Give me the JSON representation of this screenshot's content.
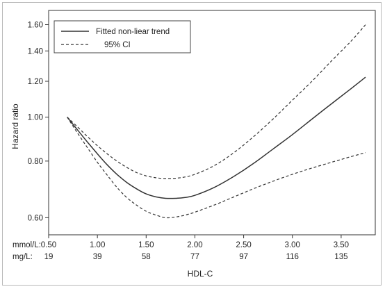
{
  "chart_data": {
    "type": "line",
    "title": "",
    "xlabel": "HDL-C",
    "ylabel": "Hazard ratio",
    "y_scale": "log",
    "ylim": [
      0.55,
      1.72
    ],
    "xlim": [
      0.5,
      3.85
    ],
    "grid": false,
    "legend_position": "top-left",
    "y_ticks": [
      "0.60",
      "0.80",
      "1.00",
      "1.20",
      "1.40",
      "1.60"
    ],
    "x_unit_row_labels": [
      "mmol/L:",
      "mg/L:"
    ],
    "x_ticks_mmol": [
      "0.50",
      "1.00",
      "1.50",
      "2.00",
      "2.50",
      "3.00",
      "3.50"
    ],
    "x_ticks_mg": [
      "19",
      "39",
      "58",
      "77",
      "97",
      "116",
      "135"
    ],
    "x_tick_values": [
      0.5,
      1.0,
      1.5,
      2.0,
      2.5,
      3.0,
      3.5
    ],
    "series": [
      {
        "name": "Fitted non-liear trend",
        "style": "solid",
        "x": [
          0.69,
          0.8,
          0.9,
          1.0,
          1.1,
          1.2,
          1.3,
          1.4,
          1.5,
          1.6,
          1.7,
          1.8,
          1.9,
          2.0,
          2.2,
          2.4,
          2.6,
          2.8,
          3.0,
          3.2,
          3.4,
          3.6,
          3.75
        ],
        "y": [
          1.0,
          0.935,
          0.88,
          0.83,
          0.785,
          0.748,
          0.718,
          0.695,
          0.677,
          0.667,
          0.662,
          0.662,
          0.665,
          0.672,
          0.7,
          0.74,
          0.79,
          0.85,
          0.915,
          0.99,
          1.07,
          1.155,
          1.225
        ]
      },
      {
        "name": "95% CI",
        "style": "dashed",
        "x": [
          0.69,
          0.8,
          0.9,
          1.0,
          1.1,
          1.2,
          1.3,
          1.4,
          1.5,
          1.6,
          1.7,
          1.8,
          1.9,
          2.0,
          2.2,
          2.4,
          2.6,
          2.8,
          3.0,
          3.2,
          3.4,
          3.6,
          3.75
        ],
        "y": [
          1.0,
          0.95,
          0.905,
          0.865,
          0.83,
          0.8,
          0.775,
          0.755,
          0.742,
          0.735,
          0.732,
          0.733,
          0.738,
          0.748,
          0.782,
          0.835,
          0.905,
          0.99,
          1.09,
          1.2,
          1.33,
          1.47,
          1.6
        ]
      },
      {
        "name": "",
        "style": "dashed",
        "x": [
          0.69,
          0.8,
          0.9,
          1.0,
          1.1,
          1.2,
          1.3,
          1.4,
          1.5,
          1.6,
          1.7,
          1.8,
          1.9,
          2.0,
          2.2,
          2.4,
          2.6,
          2.8,
          3.0,
          3.2,
          3.4,
          3.6,
          3.75
        ],
        "y": [
          1.0,
          0.92,
          0.855,
          0.795,
          0.745,
          0.7,
          0.665,
          0.64,
          0.62,
          0.608,
          0.6,
          0.602,
          0.608,
          0.617,
          0.64,
          0.667,
          0.695,
          0.722,
          0.748,
          0.772,
          0.795,
          0.818,
          0.835
        ]
      }
    ]
  }
}
